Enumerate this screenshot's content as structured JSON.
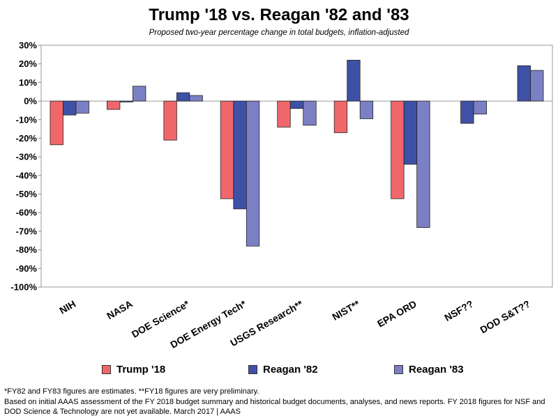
{
  "chart_data": {
    "type": "bar",
    "title": "Trump '18 vs. Reagan '82 and '83",
    "subtitle": "Proposed two-year percentage change in total budgets, inflation-adjusted",
    "categories": [
      "NIH",
      "NASA",
      "DOE Science*",
      "DOE Energy Tech*",
      "USGS Research**",
      "NIST**",
      "EPA ORD",
      "NSF??",
      "DOD S&T??"
    ],
    "series": [
      {
        "name": "Trump '18",
        "color": "#f0676b",
        "values": [
          -23.5,
          -4.5,
          -21,
          -52.5,
          -14,
          -17,
          -52.5,
          null,
          null
        ]
      },
      {
        "name": "Reagan '82",
        "color": "#3f51a7",
        "values": [
          -7.5,
          -0.5,
          4.5,
          -58,
          -4,
          22,
          -34,
          -12,
          19
        ]
      },
      {
        "name": "Reagan '83",
        "color": "#7b80c4",
        "values": [
          -6.5,
          8,
          3,
          -78,
          -13,
          -9.5,
          -68,
          -7,
          16.5
        ]
      }
    ],
    "ylim": [
      -100,
      30
    ],
    "yticks": [
      "30%",
      "20%",
      "10%",
      "0%",
      "-10%",
      "-20%",
      "-30%",
      "-40%",
      "-50%",
      "-60%",
      "-70%",
      "-80%",
      "-90%",
      "-100%"
    ],
    "xlabel": "",
    "ylabel": "",
    "legend_position": "bottom"
  },
  "footnotes": {
    "line1": "*FY82 and FY83 figures are estimates. **FY18 figures are very preliminary.",
    "line2": "Based on initial AAAS assessment of the FY 2018 budget summary and historical budget documents, analyses, and news reports. FY 2018 figures for NSF and",
    "line3": "DOD Science & Technology are not yet available. March 2017 | AAAS"
  }
}
